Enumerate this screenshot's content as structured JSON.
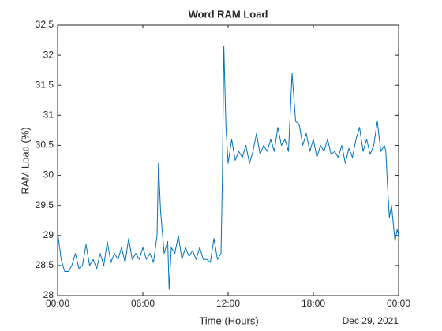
{
  "chart_data": {
    "type": "line",
    "title": "Word RAM Load",
    "xlabel": "Time (Hours)",
    "ylabel": "RAM Load (%)",
    "date_label": "Dec 29, 2021",
    "x": [
      0,
      0.25,
      0.5,
      0.75,
      1,
      1.25,
      1.5,
      1.75,
      2,
      2.25,
      2.5,
      2.75,
      3,
      3.25,
      3.5,
      3.75,
      4,
      4.25,
      4.5,
      4.75,
      5,
      5.25,
      5.5,
      5.75,
      6,
      6.25,
      6.5,
      6.75,
      7,
      7.1,
      7.25,
      7.5,
      7.75,
      7.85,
      8,
      8.25,
      8.5,
      8.75,
      9,
      9.25,
      9.5,
      9.75,
      10,
      10.25,
      10.5,
      10.75,
      11,
      11.25,
      11.5,
      11.6,
      11.7,
      11.85,
      12,
      12.25,
      12.5,
      12.75,
      13,
      13.25,
      13.5,
      13.75,
      14,
      14.25,
      14.5,
      14.75,
      15,
      15.25,
      15.5,
      15.75,
      16,
      16.25,
      16.5,
      16.75,
      17,
      17.25,
      17.5,
      17.75,
      18,
      18.25,
      18.5,
      18.75,
      19,
      19.25,
      19.5,
      19.75,
      20,
      20.25,
      20.5,
      20.75,
      21,
      21.25,
      21.5,
      21.75,
      22,
      22.25,
      22.5,
      22.75,
      23,
      23.1,
      23.25,
      23.35,
      23.5,
      23.75,
      23.9,
      24
    ],
    "series": [
      {
        "name": "RAM Load",
        "color": "#0072bd",
        "values": [
          29.05,
          28.6,
          28.4,
          28.4,
          28.5,
          28.7,
          28.45,
          28.5,
          28.85,
          28.5,
          28.6,
          28.45,
          28.7,
          28.5,
          28.9,
          28.55,
          28.7,
          28.6,
          28.8,
          28.55,
          28.95,
          28.6,
          28.7,
          28.6,
          28.8,
          28.6,
          28.7,
          28.55,
          29.0,
          30.2,
          29.4,
          28.7,
          28.9,
          28.1,
          28.8,
          28.7,
          29.0,
          28.6,
          28.8,
          28.65,
          28.75,
          28.6,
          28.8,
          28.6,
          28.6,
          28.55,
          28.95,
          28.6,
          28.7,
          30.0,
          32.15,
          30.8,
          30.2,
          30.6,
          30.25,
          30.4,
          30.3,
          30.5,
          30.2,
          30.4,
          30.7,
          30.35,
          30.5,
          30.4,
          30.6,
          30.4,
          30.8,
          30.5,
          30.6,
          30.4,
          31.7,
          30.9,
          30.85,
          30.5,
          30.7,
          30.4,
          30.6,
          30.3,
          30.5,
          30.4,
          30.6,
          30.35,
          30.4,
          30.3,
          30.5,
          30.2,
          30.45,
          30.3,
          30.6,
          30.8,
          30.4,
          30.6,
          30.35,
          30.5,
          30.9,
          30.4,
          30.5,
          30.4,
          29.7,
          29.3,
          29.5,
          28.9,
          29.1,
          29.0
        ]
      }
    ],
    "xlim": [
      0,
      24
    ],
    "xticks": [
      {
        "value": 0,
        "label": "00:00"
      },
      {
        "value": 6,
        "label": "06:00"
      },
      {
        "value": 12,
        "label": "12:00"
      },
      {
        "value": 18,
        "label": "18:00"
      },
      {
        "value": 24,
        "label": "00:00"
      }
    ],
    "ylim": [
      28,
      32.5
    ],
    "yticks": [
      28,
      28.5,
      29,
      29.5,
      30,
      30.5,
      31,
      31.5,
      32,
      32.5
    ],
    "grid": false
  }
}
